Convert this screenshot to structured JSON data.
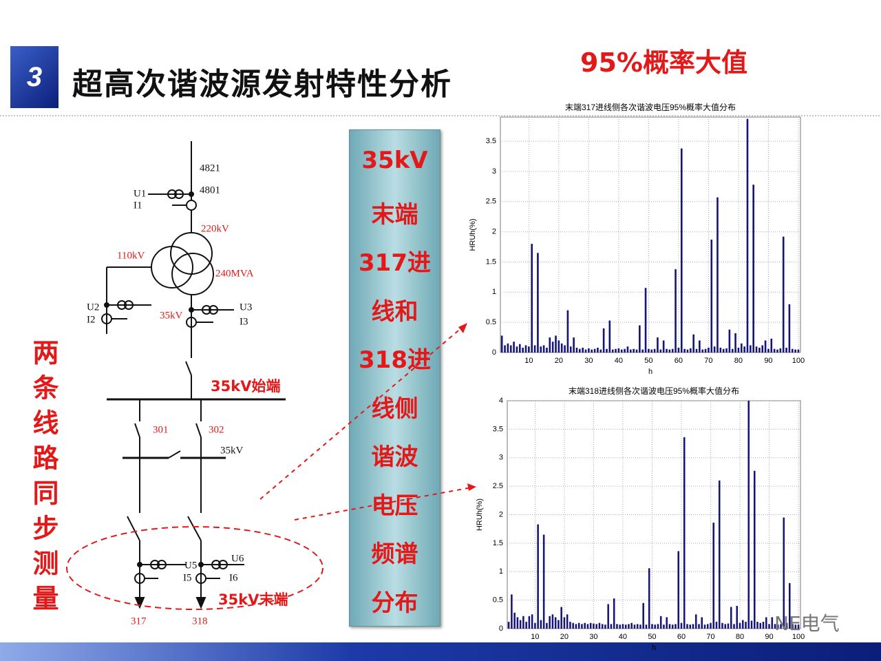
{
  "header": {
    "number": "3",
    "title": "超高次谐波源发射特性分析"
  },
  "annotation": "95%概率大值",
  "side_label": "两条线路同步测量",
  "center_label": [
    "35kV",
    "末端",
    "317进",
    "线和",
    "318进",
    "线侧",
    "谐波",
    "电压",
    "频谱",
    "分布"
  ],
  "logo": "NE电气",
  "diagram": {
    "labels": [
      "4821",
      "4801",
      "U1",
      "I1",
      "220kV",
      "110kV",
      "240MVA",
      "U2",
      "I2",
      "35kV",
      "U3",
      "I3",
      "35kV始端",
      "301",
      "302",
      "35kV",
      "U5",
      "I5",
      "U6",
      "I6",
      "35kV末端",
      "317",
      "318"
    ]
  },
  "chart_data": [
    {
      "type": "bar",
      "title": "末端317进线侧各次谐波电压95%概率大值分布",
      "xlabel": "h",
      "ylabel": "HRUh(%)",
      "color": "#14147a",
      "grid": true,
      "xlim": [
        0.5,
        100.7
      ],
      "xticks": [
        10,
        20,
        30,
        40,
        50,
        60,
        70,
        80,
        90,
        100
      ],
      "ylim": [
        0,
        3.9
      ],
      "yticks": [
        0,
        0.5,
        1,
        1.5,
        2,
        2.5,
        3,
        3.5
      ],
      "x": [
        1,
        2,
        3,
        4,
        5,
        6,
        7,
        8,
        9,
        10,
        11,
        12,
        13,
        14,
        15,
        16,
        17,
        18,
        19,
        20,
        21,
        22,
        23,
        24,
        25,
        26,
        27,
        28,
        29,
        30,
        31,
        32,
        33,
        34,
        35,
        36,
        37,
        38,
        39,
        40,
        41,
        42,
        43,
        44,
        45,
        46,
        47,
        48,
        49,
        50,
        51,
        52,
        53,
        54,
        55,
        56,
        57,
        58,
        59,
        60,
        61,
        62,
        63,
        64,
        65,
        66,
        67,
        68,
        69,
        70,
        71,
        72,
        73,
        74,
        75,
        76,
        77,
        78,
        79,
        80,
        81,
        82,
        83,
        84,
        85,
        86,
        87,
        88,
        89,
        90,
        91,
        92,
        93,
        94,
        95,
        96,
        97,
        98,
        99,
        100
      ],
      "values": [
        0.28,
        0.12,
        0.15,
        0.12,
        0.18,
        0.1,
        0.14,
        0.08,
        0.12,
        0.1,
        1.8,
        0.12,
        1.65,
        0.1,
        0.12,
        0.08,
        0.25,
        0.18,
        0.28,
        0.2,
        0.15,
        0.12,
        0.7,
        0.1,
        0.25,
        0.08,
        0.06,
        0.08,
        0.05,
        0.07,
        0.05,
        0.06,
        0.08,
        0.05,
        0.4,
        0.06,
        0.53,
        0.05,
        0.06,
        0.07,
        0.05,
        0.06,
        0.1,
        0.05,
        0.06,
        0.05,
        0.45,
        0.05,
        1.07,
        0.06,
        0.05,
        0.06,
        0.25,
        0.05,
        0.2,
        0.06,
        0.05,
        0.06,
        1.38,
        0.08,
        3.38,
        0.06,
        0.05,
        0.07,
        0.3,
        0.06,
        0.2,
        0.05,
        0.06,
        0.08,
        1.87,
        0.1,
        2.57,
        0.08,
        0.06,
        0.07,
        0.38,
        0.06,
        0.32,
        0.08,
        0.15,
        0.1,
        3.87,
        0.12,
        2.78,
        0.1,
        0.08,
        0.12,
        0.2,
        0.06,
        0.23,
        0.06,
        0.05,
        0.07,
        1.92,
        0.08,
        0.8,
        0.06,
        0.05,
        0.05
      ]
    },
    {
      "type": "bar",
      "title": "末端318进线侧各次谐波电压95%概率大值分布",
      "xlabel": "h",
      "ylabel": "HRUh(%)",
      "color": "#14147a",
      "grid": true,
      "xlim": [
        0.5,
        100.7
      ],
      "xticks": [
        10,
        20,
        30,
        40,
        50,
        60,
        70,
        80,
        90,
        100
      ],
      "ylim": [
        0,
        4
      ],
      "yticks": [
        0,
        0.5,
        1,
        1.5,
        2,
        2.5,
        3,
        3.5,
        4
      ],
      "x": [
        1,
        2,
        3,
        4,
        5,
        6,
        7,
        8,
        9,
        10,
        11,
        12,
        13,
        14,
        15,
        16,
        17,
        18,
        19,
        20,
        21,
        22,
        23,
        24,
        25,
        26,
        27,
        28,
        29,
        30,
        31,
        32,
        33,
        34,
        35,
        36,
        37,
        38,
        39,
        40,
        41,
        42,
        43,
        44,
        45,
        46,
        47,
        48,
        49,
        50,
        51,
        52,
        53,
        54,
        55,
        56,
        57,
        58,
        59,
        60,
        61,
        62,
        63,
        64,
        65,
        66,
        67,
        68,
        69,
        70,
        71,
        72,
        73,
        74,
        75,
        76,
        77,
        78,
        79,
        80,
        81,
        82,
        83,
        84,
        85,
        86,
        87,
        88,
        89,
        90,
        91,
        92,
        93,
        94,
        95,
        96,
        97,
        98,
        99,
        100
      ],
      "values": [
        0.12,
        0.6,
        0.28,
        0.2,
        0.15,
        0.22,
        0.12,
        0.22,
        0.25,
        0.1,
        1.83,
        0.15,
        1.65,
        0.1,
        0.22,
        0.25,
        0.2,
        0.15,
        0.38,
        0.2,
        0.25,
        0.12,
        0.1,
        0.08,
        0.1,
        0.08,
        0.1,
        0.08,
        0.1,
        0.09,
        0.08,
        0.1,
        0.08,
        0.07,
        0.43,
        0.08,
        0.53,
        0.08,
        0.07,
        0.08,
        0.07,
        0.08,
        0.1,
        0.07,
        0.08,
        0.07,
        0.45,
        0.07,
        1.06,
        0.08,
        0.07,
        0.08,
        0.22,
        0.07,
        0.2,
        0.08,
        0.07,
        0.08,
        1.36,
        0.1,
        3.36,
        0.08,
        0.07,
        0.08,
        0.25,
        0.08,
        0.2,
        0.07,
        0.08,
        0.1,
        1.86,
        0.12,
        2.6,
        0.1,
        0.08,
        0.09,
        0.38,
        0.08,
        0.4,
        0.1,
        0.15,
        0.12,
        4.0,
        0.14,
        2.77,
        0.12,
        0.1,
        0.12,
        0.2,
        0.08,
        0.2,
        0.08,
        0.07,
        0.08,
        1.95,
        0.1,
        0.8,
        0.08,
        0.07,
        0.07
      ]
    }
  ]
}
